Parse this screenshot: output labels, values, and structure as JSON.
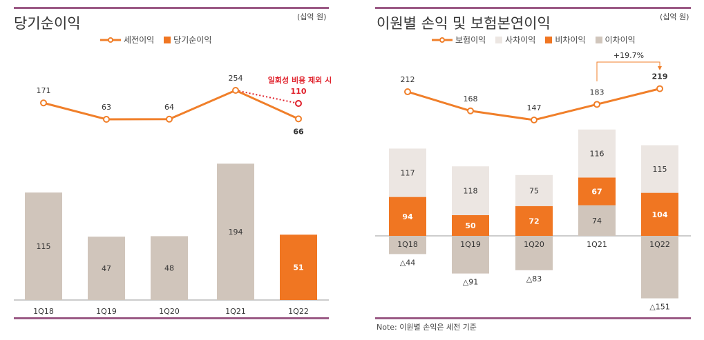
{
  "left": {
    "title": "당기순이익",
    "unit": "(십억 원)",
    "legend_line": "세전이익",
    "legend_bar": "당기순이익"
  },
  "right": {
    "title": "이원별 손익 및 보험본연이익",
    "unit": "(십억 원)",
    "legend": [
      "보험이익",
      "사차이익",
      "비차이익",
      "이차이익"
    ],
    "growth_label": "+19.7%"
  },
  "note": "Note: 이원별 손익은 세전 기준",
  "chart_data": [
    {
      "type": "bar+line",
      "categories": [
        "1Q18",
        "1Q19",
        "1Q20",
        "1Q21",
        "1Q22"
      ],
      "series": [
        {
          "name": "세전이익",
          "type": "line",
          "values": [
            171,
            63,
            64,
            254,
            66
          ]
        },
        {
          "name": "당기순이익",
          "type": "bar",
          "values": [
            115,
            47,
            48,
            194,
            51
          ]
        }
      ],
      "annotation": {
        "text": "일회성 비용 제외 시",
        "value": 110,
        "category": "1Q22"
      },
      "colors": {
        "line": "#f07f2a",
        "bar": "#d0c5bb",
        "bar_highlight": "#f07622",
        "annotation": "#e0202a"
      }
    },
    {
      "type": "stacked-bar+line",
      "categories": [
        "1Q18",
        "1Q19",
        "1Q20",
        "1Q21",
        "1Q22"
      ],
      "series": [
        {
          "name": "보험이익",
          "type": "line",
          "values": [
            212,
            168,
            147,
            183,
            219
          ]
        },
        {
          "name": "사차이익",
          "type": "bar",
          "values": [
            117,
            118,
            75,
            116,
            115
          ]
        },
        {
          "name": "비차이익",
          "type": "bar",
          "values": [
            94,
            50,
            72,
            67,
            104
          ]
        },
        {
          "name": "이차이익",
          "type": "bar",
          "values": [
            -44,
            -91,
            -83,
            74,
            -151
          ],
          "labels": [
            "△44",
            "△91",
            "△83",
            "74",
            "△151"
          ]
        }
      ],
      "colors": {
        "line": "#f07f2a",
        "사차이익": "#ece6e2",
        "비차이익": "#f07622",
        "이차이익": "#d0c5bb"
      }
    }
  ]
}
